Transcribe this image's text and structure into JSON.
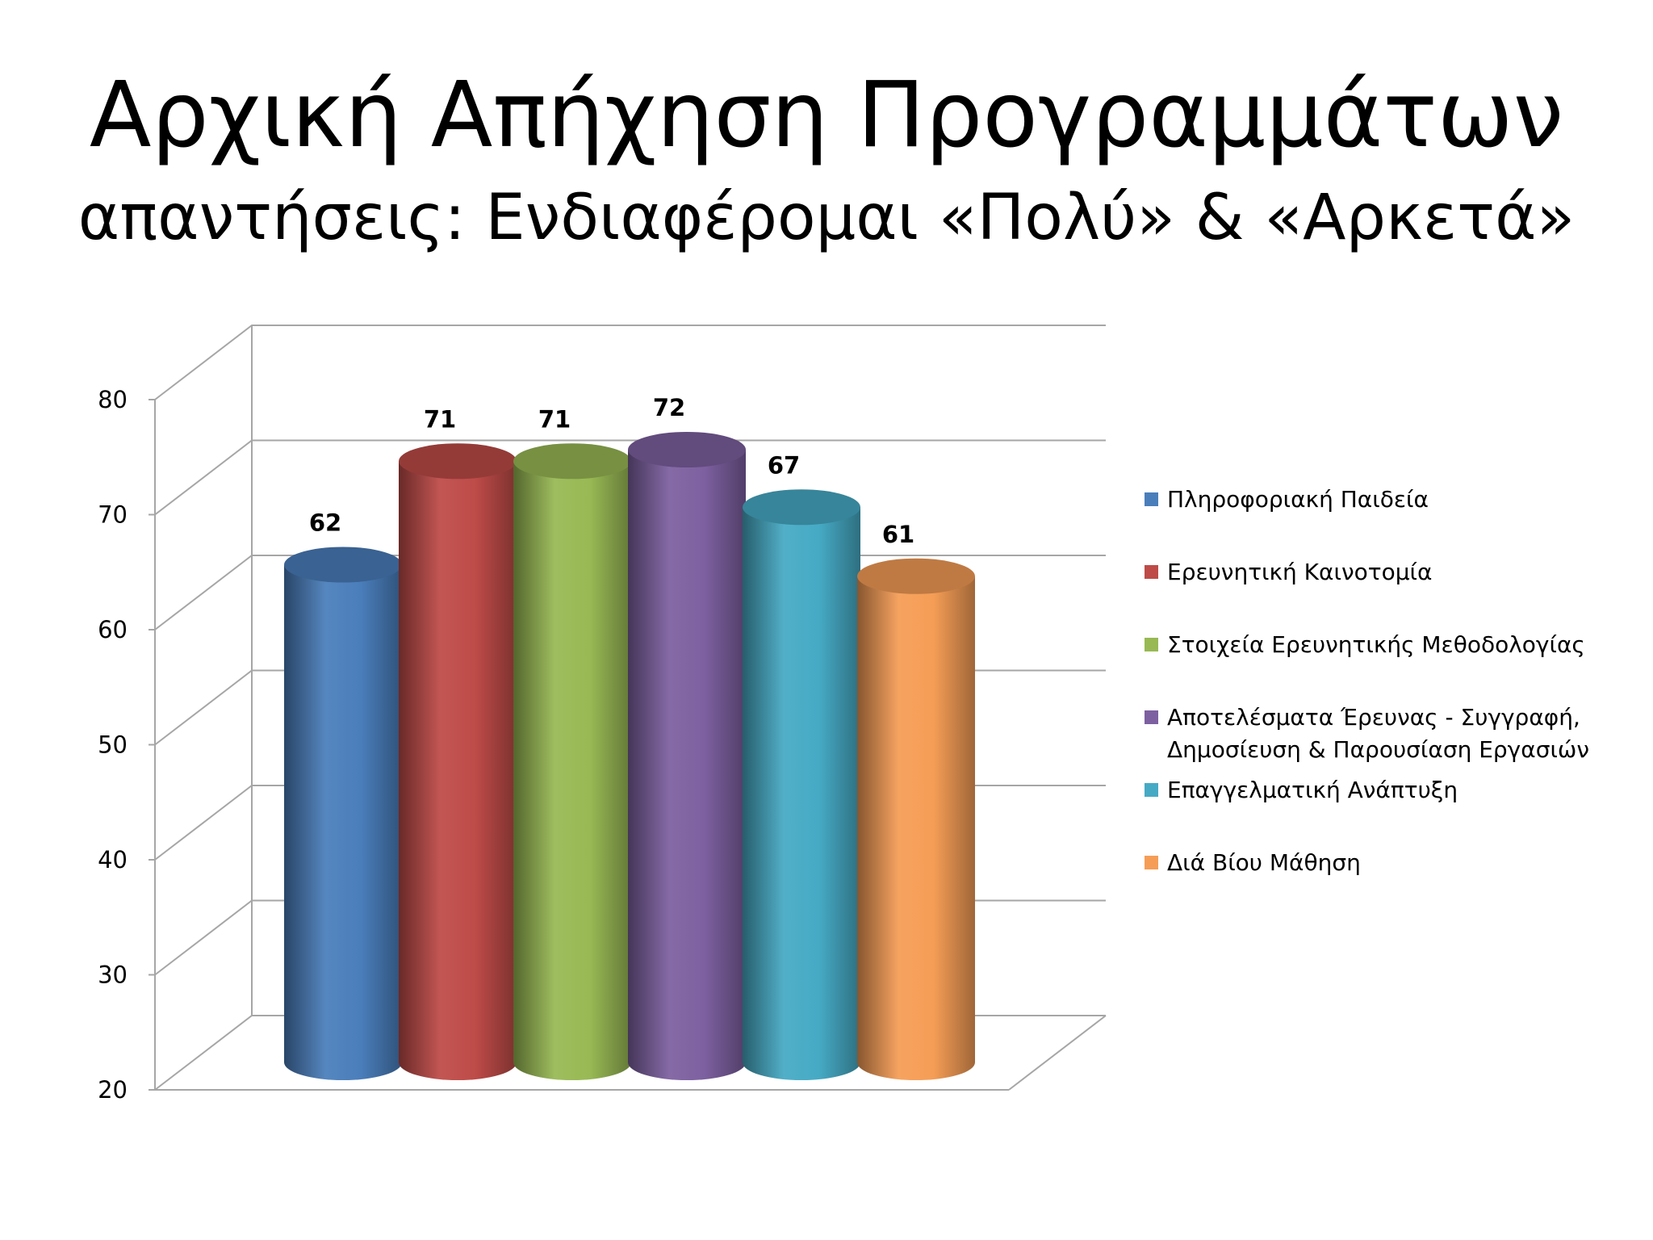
{
  "slide": {
    "title": "Αρχική Απήχηση Προγραμμάτων",
    "subtitle": "απαντήσεις: Ενδιαφέρομαι «Πολύ» & «Αρκετά»"
  },
  "chart_data": {
    "type": "bar",
    "style": "3d-cylinder",
    "categories": [
      "Πληροφοριακή Παιδεία",
      "Ερευνητική Καινοτομία",
      "Στοιχεία Ερευνητικής Μεθοδολογίας",
      "Αποτελέσματα Έρευνας - Συγγραφή, Δημοσίευση & Παρουσίαση Εργασιών",
      "Επαγγελματική Ανάπτυξη",
      "Διά Βίου Μάθηση"
    ],
    "legend_lines": [
      [
        "Πληροφοριακή Παιδεία"
      ],
      [
        "Ερευνητική Καινοτομία"
      ],
      [
        "Στοιχεία Ερευνητικής Μεθοδολογίας"
      ],
      [
        "Αποτελέσματα Έρευνας - Συγγραφή,",
        "Δημοσίευση & Παρουσίαση Εργασιών"
      ],
      [
        "Επαγγελματική Ανάπτυξη"
      ],
      [
        "Διά Βίου Μάθηση"
      ]
    ],
    "values": [
      62,
      71,
      71,
      72,
      67,
      61
    ],
    "colors": [
      "#4a7ebb",
      "#be4b48",
      "#98b954",
      "#7d60a0",
      "#46aac5",
      "#f59d56"
    ],
    "ylim": [
      20,
      80
    ],
    "yticks": [
      20,
      30,
      40,
      50,
      60,
      70,
      80
    ],
    "grid": true,
    "legend_position": "right",
    "data_labels": true
  }
}
